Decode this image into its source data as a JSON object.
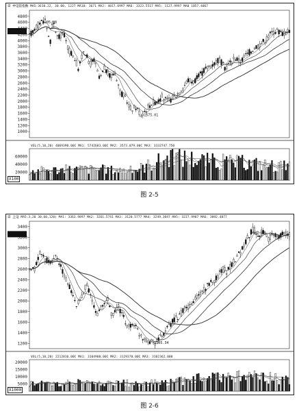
{
  "chart_data": [
    {
      "type": "candlestick",
      "caption": "图 2-5",
      "header": "日  中证前指数 MA5:3610.22, 30.00, 1227  MA10: 3671  MA2: 4017.6997  MA6: 3323.5517  MA5: 1127.9997  MA0  1057.4067",
      "ylim": [
        800,
        5000
      ],
      "yticks": [
        4800,
        4600,
        4400,
        4200,
        4000,
        3800,
        3600,
        3400,
        3200,
        3000,
        2800,
        2600,
        2400,
        2200,
        2000,
        1800,
        1600,
        1400,
        1200,
        1000
      ],
      "price_annotations": [
        {
          "label": "4205.98",
          "x": 0.05,
          "y": 4620
        },
        {
          "label": "1575.01",
          "x": 0.44,
          "y": 1560
        }
      ],
      "price_path": [
        [
          0.0,
          4150
        ],
        [
          0.02,
          4400
        ],
        [
          0.04,
          4600
        ],
        [
          0.06,
          4700
        ],
        [
          0.07,
          4300
        ],
        [
          0.08,
          3950
        ],
        [
          0.09,
          4650
        ],
        [
          0.11,
          4050
        ],
        [
          0.13,
          4300
        ],
        [
          0.15,
          3700
        ],
        [
          0.17,
          3500
        ],
        [
          0.19,
          3050
        ],
        [
          0.21,
          3750
        ],
        [
          0.23,
          3200
        ],
        [
          0.25,
          3350
        ],
        [
          0.27,
          2700
        ],
        [
          0.29,
          3100
        ],
        [
          0.31,
          2800
        ],
        [
          0.33,
          2950
        ],
        [
          0.35,
          2300
        ],
        [
          0.37,
          2100
        ],
        [
          0.39,
          1750
        ],
        [
          0.41,
          1800
        ],
        [
          0.43,
          1560
        ],
        [
          0.45,
          1750
        ],
        [
          0.47,
          1950
        ],
        [
          0.49,
          2000
        ],
        [
          0.51,
          2150
        ],
        [
          0.53,
          2000
        ],
        [
          0.55,
          2100
        ],
        [
          0.57,
          2250
        ],
        [
          0.59,
          2450
        ],
        [
          0.61,
          2700
        ],
        [
          0.63,
          2650
        ],
        [
          0.65,
          2800
        ],
        [
          0.67,
          3000
        ],
        [
          0.69,
          3150
        ],
        [
          0.71,
          3250
        ],
        [
          0.73,
          3400
        ],
        [
          0.75,
          3100
        ],
        [
          0.77,
          3250
        ],
        [
          0.79,
          3450
        ],
        [
          0.81,
          3300
        ],
        [
          0.83,
          3500
        ],
        [
          0.85,
          3650
        ],
        [
          0.87,
          3800
        ],
        [
          0.89,
          3900
        ],
        [
          0.91,
          4050
        ],
        [
          0.93,
          4250
        ],
        [
          0.95,
          4350
        ],
        [
          0.97,
          4250
        ],
        [
          1.0,
          4300
        ]
      ],
      "volume_header": "VOL(5,10,20) 4069390.00C  MA1: 5742683.00C  MA2: 3573.079.00C  MA3: 3332747.750",
      "volume_ylim": [
        0,
        80000
      ],
      "volume_yticks": [
        60000,
        40000,
        20000
      ],
      "volume_badge": "X100",
      "volume_profile": [
        [
          0.0,
          25000
        ],
        [
          0.2,
          30000
        ],
        [
          0.4,
          26000
        ],
        [
          0.55,
          65000
        ],
        [
          0.7,
          50000
        ],
        [
          0.85,
          45000
        ],
        [
          1.0,
          35000
        ]
      ]
    },
    {
      "type": "candlestick",
      "caption": "图 2-6",
      "header": "日  上证 MA5:3,20 30,60,120)  MA1: 3363.9897  MA2: 3261.5741  MA3: 3120.5777  MA4: 3249.3047  MA5: 3237.9987  MA6: 3092.4877",
      "ylim": [
        1100,
        3500
      ],
      "yticks": [
        3400,
        3200,
        3000,
        2800,
        2600,
        2400,
        2200,
        2000,
        1800,
        1600,
        1400,
        1200
      ],
      "price_annotations": [
        {
          "label": "3422.37",
          "x": 0.85,
          "y": 3290
        },
        {
          "label": "1205.34",
          "x": 0.48,
          "y": 1215
        }
      ],
      "price_path": [
        [
          0.0,
          2550
        ],
        [
          0.02,
          2600
        ],
        [
          0.04,
          2900
        ],
        [
          0.06,
          2800
        ],
        [
          0.08,
          2700
        ],
        [
          0.1,
          2850
        ],
        [
          0.12,
          2650
        ],
        [
          0.14,
          2400
        ],
        [
          0.16,
          2200
        ],
        [
          0.18,
          1900
        ],
        [
          0.2,
          2050
        ],
        [
          0.22,
          2350
        ],
        [
          0.24,
          2000
        ],
        [
          0.26,
          1750
        ],
        [
          0.28,
          1900
        ],
        [
          0.3,
          2050
        ],
        [
          0.32,
          1700
        ],
        [
          0.34,
          1900
        ],
        [
          0.36,
          1700
        ],
        [
          0.38,
          1500
        ],
        [
          0.4,
          1600
        ],
        [
          0.42,
          1400
        ],
        [
          0.44,
          1300
        ],
        [
          0.46,
          1250
        ],
        [
          0.48,
          1210
        ],
        [
          0.5,
          1300
        ],
        [
          0.52,
          1400
        ],
        [
          0.54,
          1550
        ],
        [
          0.56,
          1650
        ],
        [
          0.58,
          1750
        ],
        [
          0.6,
          1850
        ],
        [
          0.62,
          1900
        ],
        [
          0.64,
          2050
        ],
        [
          0.66,
          2150
        ],
        [
          0.68,
          2250
        ],
        [
          0.7,
          2350
        ],
        [
          0.72,
          2450
        ],
        [
          0.74,
          2600
        ],
        [
          0.76,
          2550
        ],
        [
          0.78,
          2700
        ],
        [
          0.8,
          2850
        ],
        [
          0.82,
          3000
        ],
        [
          0.84,
          3200
        ],
        [
          0.86,
          3350
        ],
        [
          0.88,
          3250
        ],
        [
          0.9,
          3300
        ],
        [
          0.92,
          3150
        ],
        [
          0.94,
          3250
        ],
        [
          0.96,
          3200
        ],
        [
          0.98,
          3300
        ],
        [
          1.0,
          3250
        ]
      ],
      "volume_header": "VOL(5,10,20) 2212010.00C  MA1: 3104900.00C  MA2: 3129370.00C  MA3: 3102362.000",
      "volume_ylim": [
        0,
        22000
      ],
      "volume_yticks": [
        20000,
        15000,
        10000,
        5000
      ],
      "volume_badge": "X1000",
      "volume_profile": [
        [
          0.0,
          5000
        ],
        [
          0.15,
          6500
        ],
        [
          0.3,
          5500
        ],
        [
          0.5,
          6000
        ],
        [
          0.65,
          9000
        ],
        [
          0.8,
          11000
        ],
        [
          0.9,
          10000
        ],
        [
          1.0,
          8000
        ]
      ]
    }
  ]
}
